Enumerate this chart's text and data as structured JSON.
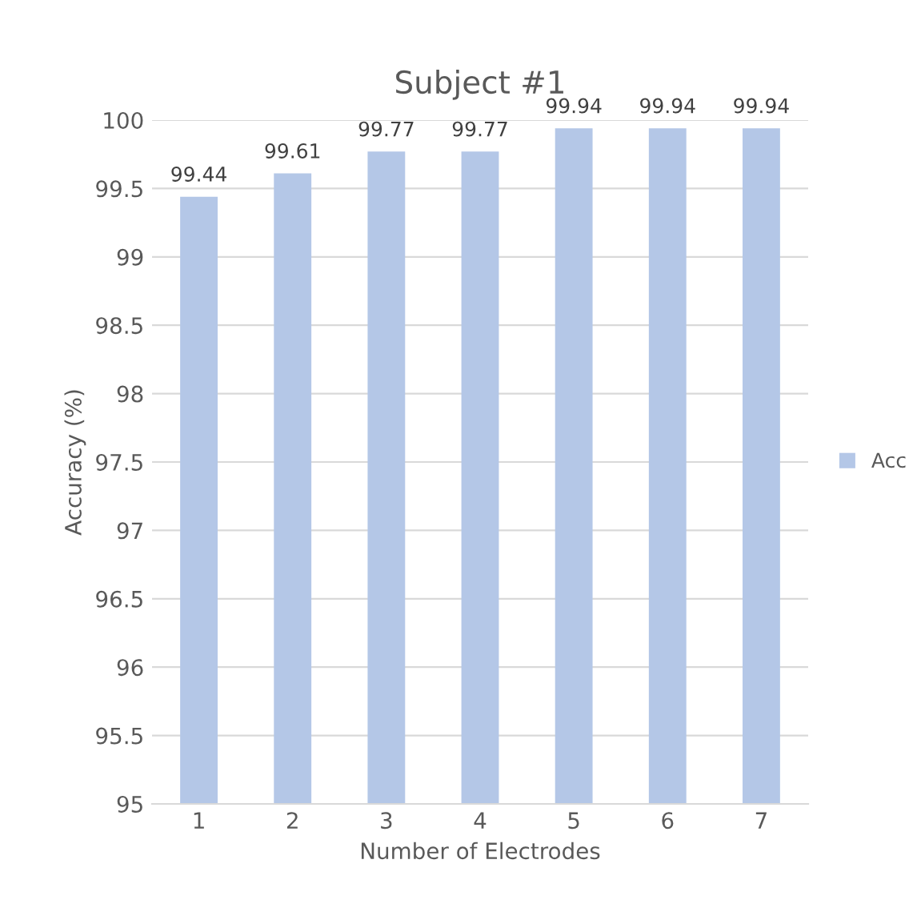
{
  "chart_data": {
    "type": "bar",
    "title": "Subject #1",
    "xlabel": "Number of Electrodes",
    "ylabel": "Accuracy (%)",
    "categories": [
      "1",
      "2",
      "3",
      "4",
      "5",
      "6",
      "7"
    ],
    "series": [
      {
        "name": "Acc",
        "color": "#b4c7e7",
        "values": [
          99.44,
          99.61,
          99.77,
          99.77,
          99.94,
          99.94,
          99.94
        ]
      }
    ],
    "ylim": [
      95,
      100
    ],
    "yticks": [
      95,
      95.5,
      96,
      96.5,
      97,
      97.5,
      98,
      98.5,
      99,
      99.5,
      100
    ],
    "grid": "y",
    "legend": "right",
    "data_labels": true
  }
}
